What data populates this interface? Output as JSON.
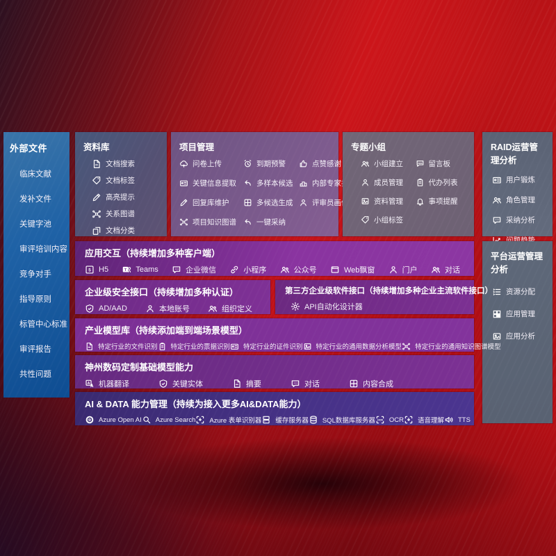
{
  "sidebar": {
    "title": "外部文件",
    "items": [
      {
        "name": "sidebar-item-clinical-literature",
        "label": "临床文献"
      },
      {
        "name": "sidebar-item-supplement-files",
        "label": "发补文件"
      },
      {
        "name": "sidebar-item-keyword-pool",
        "label": "关键字池"
      },
      {
        "name": "sidebar-item-review-training",
        "label": "审评培训内容"
      },
      {
        "name": "sidebar-item-competitors",
        "label": "竞争对手"
      },
      {
        "name": "sidebar-item-guidelines",
        "label": "指导原则"
      },
      {
        "name": "sidebar-item-center-standards",
        "label": "标管中心标准"
      },
      {
        "name": "sidebar-item-review-reports",
        "label": "审评报告"
      },
      {
        "name": "sidebar-item-common-issues",
        "label": "共性问题"
      }
    ]
  },
  "panels": {
    "library": {
      "title": "资料库",
      "items": [
        {
          "name": "doc-search",
          "icon": "doc",
          "label": "文档搜索"
        },
        {
          "name": "doc-tags",
          "icon": "tag",
          "label": "文档标签"
        },
        {
          "name": "highlight-hint",
          "icon": "pen",
          "label": "高亮提示"
        },
        {
          "name": "relation-graph",
          "icon": "network",
          "label": "关系图谱"
        },
        {
          "name": "doc-classify",
          "icon": "copy",
          "label": "文档分类"
        }
      ]
    },
    "project": {
      "title": "项目管理",
      "items": [
        {
          "name": "questionnaire-upload",
          "icon": "cloud",
          "label": "问卷上传"
        },
        {
          "name": "due-alert",
          "icon": "alarm",
          "label": "到期预警"
        },
        {
          "name": "like-thanks",
          "icon": "like",
          "label": "点赞感谢"
        },
        {
          "name": "key-info-extract",
          "icon": "card",
          "label": "关键信息提取"
        },
        {
          "name": "multi-sample-candidates",
          "icon": "reply",
          "label": "多样本候选"
        },
        {
          "name": "internal-expert-ranking",
          "icon": "podium",
          "label": "内部专家排名"
        },
        {
          "name": "reply-library-maintain",
          "icon": "pen",
          "label": "回复库维护"
        },
        {
          "name": "multi-candidate-generate",
          "icon": "pinwheel",
          "label": "多候选生成"
        },
        {
          "name": "reviewer-profile",
          "icon": "person",
          "label": "评审员画像"
        },
        {
          "name": "project-knowledge-graph",
          "icon": "network",
          "label": "项目知识图谱"
        },
        {
          "name": "one-click-adopt",
          "icon": "reply",
          "label": "一键采纳"
        }
      ]
    },
    "groups": {
      "title": "专题小组",
      "items": [
        {
          "name": "group-create",
          "icon": "people",
          "label": "小组建立"
        },
        {
          "name": "message-board",
          "icon": "bbs",
          "label": "留言板"
        },
        {
          "name": "member-manage",
          "icon": "person",
          "label": "成员管理"
        },
        {
          "name": "todo-list",
          "icon": "clipboard",
          "label": "代办列表"
        },
        {
          "name": "material-manage",
          "icon": "image",
          "label": "资料管理"
        },
        {
          "name": "matter-remind",
          "icon": "bell",
          "label": "事项提醒"
        },
        {
          "name": "group-tags",
          "icon": "tag",
          "label": "小组标签"
        }
      ]
    },
    "raid": {
      "title": "RAID运营管理分析",
      "items": [
        {
          "name": "user-training",
          "icon": "card",
          "label": "用户锻炼"
        },
        {
          "name": "role-manage",
          "icon": "people",
          "label": "角色管理"
        },
        {
          "name": "adoption-analysis",
          "icon": "chat",
          "label": "采纳分析"
        },
        {
          "name": "issue-trend",
          "icon": "trend",
          "label": "问题趋势"
        }
      ]
    },
    "platform": {
      "title": "平台运营管理分析",
      "items": [
        {
          "name": "resource-allocation",
          "icon": "list",
          "label": "资源分配"
        },
        {
          "name": "app-manage",
          "icon": "grid",
          "label": "应用管理"
        },
        {
          "name": "app-analysis",
          "icon": "image",
          "label": "应用分析"
        }
      ]
    }
  },
  "bands": {
    "interaction": {
      "title": "应用交互（持续增加多种客户端）",
      "items": [
        {
          "name": "client-h5",
          "icon": "h5",
          "label": "H5"
        },
        {
          "name": "client-teams",
          "icon": "teams",
          "label": "Teams"
        },
        {
          "name": "client-wecom",
          "icon": "chat",
          "label": "企业微信"
        },
        {
          "name": "client-miniprogram",
          "icon": "link",
          "label": "小程序"
        },
        {
          "name": "client-official-account",
          "icon": "people",
          "label": "公众号"
        },
        {
          "name": "client-web-popup",
          "icon": "window",
          "label": "Web飘窗"
        },
        {
          "name": "client-portal",
          "icon": "person",
          "label": "门户"
        },
        {
          "name": "client-dialog",
          "icon": "people",
          "label": "对话"
        }
      ]
    },
    "security": {
      "title": "企业级安全接口（持续增加多种认证）",
      "items": [
        {
          "name": "auth-ad-aad",
          "icon": "shield",
          "label": "AD/AAD"
        },
        {
          "name": "auth-local-account",
          "icon": "person",
          "label": "本地账号"
        },
        {
          "name": "auth-org-definition",
          "icon": "people",
          "label": "组织定义"
        }
      ]
    },
    "third": {
      "title": "第三方企业级软件接口（持续增加多种企业主流软件接口）",
      "items": [
        {
          "name": "api-auto-designer",
          "icon": "gear",
          "label": "API自动化设计器"
        }
      ]
    },
    "industry": {
      "title": "产业模型库（持续添加端到端场景模型）",
      "items": [
        {
          "name": "industry-file-recognition",
          "icon": "doc",
          "label": "特定行业的文件识别"
        },
        {
          "name": "industry-receipt-recognition",
          "icon": "clipboard",
          "label": "特定行业的票据识别"
        },
        {
          "name": "industry-id-recognition",
          "icon": "card",
          "label": "特定行业的证件识别"
        },
        {
          "name": "industry-data-analysis-model",
          "icon": "image",
          "label": "特定行业的通用数据分析模型"
        },
        {
          "name": "industry-knowledge-graph-model",
          "icon": "network",
          "label": "特定行业的通用知识图谱模型"
        }
      ]
    },
    "base": {
      "title": "神州数码定制基础模型能力",
      "items": [
        {
          "name": "machine-translation",
          "icon": "translate",
          "label": "机器翻译"
        },
        {
          "name": "key-entity",
          "icon": "shield",
          "label": "关键实体"
        },
        {
          "name": "summary",
          "icon": "doc",
          "label": "摘要"
        },
        {
          "name": "dialog",
          "icon": "chat",
          "label": "对话"
        },
        {
          "name": "content-compose",
          "icon": "pinwheel",
          "label": "内容合成"
        }
      ]
    },
    "aidata": {
      "title": "AI & DATA 能力管理（持续为接入更多AI&DATA能力）",
      "items": [
        {
          "name": "azure-openai",
          "icon": "openai",
          "label": "Azure Open AI"
        },
        {
          "name": "azure-search",
          "icon": "search",
          "label": "Azure Search"
        },
        {
          "name": "azure-form-recognizer",
          "icon": "scan",
          "label": "Azure 表单识别器"
        },
        {
          "name": "cache-server",
          "icon": "server",
          "label": "缓存服务器"
        },
        {
          "name": "sql-db-server",
          "icon": "db",
          "label": "SQL数据库服务器"
        },
        {
          "name": "ocr",
          "icon": "ocr",
          "label": "OCR"
        },
        {
          "name": "speech-understanding",
          "icon": "scan",
          "label": "语音理解"
        },
        {
          "name": "tts",
          "icon": "sound",
          "label": "TTS"
        }
      ]
    }
  },
  "colors": {
    "background_red": "#c31118",
    "sidebar_blue": "#1f62a6",
    "band_purple": "#7f3196",
    "aidata_indigo": "#473288",
    "panel_slate": "#5e6879"
  }
}
